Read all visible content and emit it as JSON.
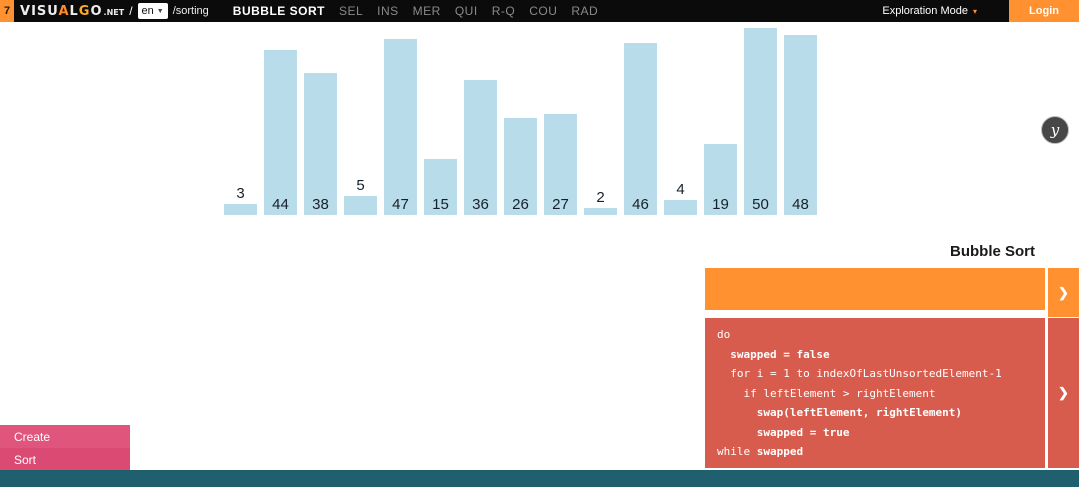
{
  "topbar": {
    "slide_number": "7",
    "logo_letters": [
      {
        "ch": "V",
        "color": "#ededed"
      },
      {
        "ch": "I",
        "color": "#ededed"
      },
      {
        "ch": "S",
        "color": "#ededed"
      },
      {
        "ch": "U",
        "color": "#ededed"
      },
      {
        "ch": "A",
        "color": "#ff8a27"
      },
      {
        "ch": "L",
        "color": "#ededed"
      },
      {
        "ch": "G",
        "color": "#ffaa27"
      },
      {
        "ch": "O",
        "color": "#ededed"
      }
    ],
    "logo_suffix": ".NET",
    "separator": "/",
    "language": "en",
    "path": "/sorting",
    "nav": [
      {
        "label": "BUBBLE SORT",
        "active": true
      },
      {
        "label": "SEL",
        "active": false
      },
      {
        "label": "INS",
        "active": false
      },
      {
        "label": "MER",
        "active": false
      },
      {
        "label": "QUI",
        "active": false
      },
      {
        "label": "R-Q",
        "active": false
      },
      {
        "label": "COU",
        "active": false
      },
      {
        "label": "RAD",
        "active": false
      }
    ],
    "exploration_mode": "Exploration Mode",
    "login": "Login"
  },
  "chart_data": {
    "type": "bar",
    "values": [
      3,
      44,
      38,
      5,
      47,
      15,
      36,
      26,
      27,
      2,
      46,
      4,
      19,
      50,
      48
    ],
    "ylim": [
      0,
      50
    ],
    "title": "",
    "xlabel": "",
    "ylabel": "",
    "bar_color": "#b8dcea",
    "label_color": "#17202a"
  },
  "mascot_icon": "y",
  "panel": {
    "title": "Bubble Sort",
    "status_text": "",
    "collapse_arrow": "❯",
    "code_lines": [
      {
        "segments": [
          {
            "text": "do",
            "bold": false
          }
        ]
      },
      {
        "segments": [
          {
            "text": "  ",
            "bold": false
          },
          {
            "text": "swapped = false",
            "bold": true
          }
        ]
      },
      {
        "segments": [
          {
            "text": "  for i = 1 to indexOfLastUnsortedElement-1",
            "bold": false
          }
        ]
      },
      {
        "segments": [
          {
            "text": "    if leftElement > rightElement",
            "bold": false
          }
        ]
      },
      {
        "segments": [
          {
            "text": "      ",
            "bold": false
          },
          {
            "text": "swap(leftElement, rightElement)",
            "bold": true
          }
        ]
      },
      {
        "segments": [
          {
            "text": "      ",
            "bold": false
          },
          {
            "text": "swapped = true",
            "bold": true
          }
        ]
      },
      {
        "segments": [
          {
            "text": "while ",
            "bold": false
          },
          {
            "text": "swapped",
            "bold": true
          }
        ]
      }
    ]
  },
  "controls": {
    "items": [
      {
        "label": "Create"
      },
      {
        "label": "Sort"
      }
    ]
  },
  "colors": {
    "accent_orange": "#ff9130",
    "code_red": "#d85c4d",
    "control_pink": "#e0557c",
    "control_pink_dark": "#db4a73",
    "footer_teal": "#205f6e",
    "bar_blue": "#b8dcea"
  }
}
